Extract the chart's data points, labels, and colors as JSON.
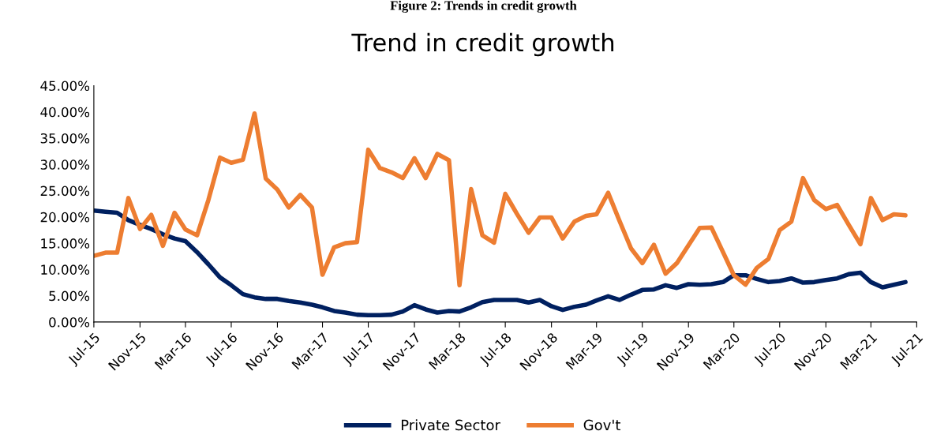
{
  "chart_data": {
    "type": "line",
    "title": "Trend in credit growth",
    "annotations": [
      "Figure 2: Trends in credit growth"
    ],
    "x": [
      "2015-07",
      "2015-08",
      "2015-09",
      "2015-10",
      "2015-11",
      "2015-12",
      "2016-01",
      "2016-02",
      "2016-03",
      "2016-04",
      "2016-05",
      "2016-06",
      "2016-07",
      "2016-08",
      "2016-09",
      "2016-10",
      "2016-11",
      "2016-12",
      "2017-01",
      "2017-02",
      "2017-03",
      "2017-04",
      "2017-05",
      "2017-06",
      "2017-07",
      "2017-08",
      "2017-09",
      "2017-10",
      "2017-11",
      "2017-12",
      "2018-01",
      "2018-02",
      "2018-03",
      "2018-04",
      "2018-05",
      "2018-06",
      "2018-07",
      "2018-08",
      "2018-09",
      "2018-10",
      "2018-11",
      "2018-12",
      "2019-01",
      "2019-02",
      "2019-03",
      "2019-04",
      "2019-05",
      "2019-06",
      "2019-07",
      "2019-08",
      "2019-09",
      "2019-10",
      "2019-11",
      "2019-12",
      "2020-01",
      "2020-02",
      "2020-03",
      "2020-04",
      "2020-05",
      "2020-06",
      "2020-07",
      "2020-08",
      "2020-09",
      "2020-10",
      "2020-11",
      "2020-12",
      "2021-01",
      "2021-02",
      "2021-03",
      "2021-04",
      "2021-05",
      "2021-06"
    ],
    "series": [
      {
        "name": "Private Sector",
        "color": "#002060",
        "values": [
          21.2,
          21.0,
          20.8,
          19.4,
          18.5,
          17.7,
          16.7,
          15.9,
          15.4,
          13.3,
          11.0,
          8.5,
          7.0,
          5.3,
          4.7,
          4.4,
          4.4,
          4.0,
          3.7,
          3.3,
          2.8,
          2.1,
          1.8,
          1.4,
          1.3,
          1.3,
          1.4,
          2.0,
          3.2,
          2.4,
          1.8,
          2.1,
          2.0,
          2.8,
          3.8,
          4.2,
          4.2,
          4.2,
          3.7,
          4.2,
          3.0,
          2.3,
          2.9,
          3.3,
          4.1,
          4.9,
          4.2,
          5.2,
          6.1,
          6.2,
          7.0,
          6.5,
          7.2,
          7.1,
          7.2,
          7.6,
          8.9,
          8.9,
          8.2,
          7.6,
          7.8,
          8.3,
          7.5,
          7.6,
          8.0,
          8.3,
          9.1,
          9.4,
          7.6,
          6.6,
          7.1,
          7.6
        ]
      },
      {
        "name": "Gov't",
        "color": "#ed7d31",
        "values": [
          12.6,
          13.2,
          13.2,
          23.6,
          17.7,
          20.4,
          14.5,
          20.8,
          17.6,
          16.5,
          23.2,
          31.3,
          30.3,
          30.9,
          39.7,
          27.3,
          25.2,
          21.8,
          24.2,
          21.8,
          9.0,
          14.2,
          15.0,
          15.2,
          32.8,
          29.3,
          28.5,
          27.4,
          31.2,
          27.4,
          32.0,
          30.8,
          7.0,
          25.3,
          16.5,
          15.1,
          24.4,
          20.6,
          17.0,
          19.9,
          19.9,
          15.9,
          19.1,
          20.2,
          20.5,
          24.6,
          19.3,
          14.0,
          11.2,
          14.7,
          9.2,
          11.2,
          14.6,
          17.9,
          18.0,
          13.3,
          8.9,
          7.1,
          10.3,
          12.0,
          17.5,
          19.1,
          27.4,
          23.2,
          21.5,
          22.3,
          18.5,
          14.8,
          23.6,
          19.4,
          20.5,
          20.3
        ]
      }
    ],
    "xlim": [
      "2015-07",
      "2021-07"
    ],
    "xticks": [
      {
        "value": "2015-07",
        "label": "Jul-15"
      },
      {
        "value": "2015-11",
        "label": "Nov-15"
      },
      {
        "value": "2016-03",
        "label": "Mar-16"
      },
      {
        "value": "2016-07",
        "label": "Jul-16"
      },
      {
        "value": "2016-11",
        "label": "Nov-16"
      },
      {
        "value": "2017-03",
        "label": "Mar-17"
      },
      {
        "value": "2017-07",
        "label": "Jul-17"
      },
      {
        "value": "2017-11",
        "label": "Nov-17"
      },
      {
        "value": "2018-03",
        "label": "Mar-18"
      },
      {
        "value": "2018-07",
        "label": "Jul-18"
      },
      {
        "value": "2018-11",
        "label": "Nov-18"
      },
      {
        "value": "2019-03",
        "label": "Mar-19"
      },
      {
        "value": "2019-07",
        "label": "Jul-19"
      },
      {
        "value": "2019-11",
        "label": "Nov-19"
      },
      {
        "value": "2020-03",
        "label": "Mar-20"
      },
      {
        "value": "2020-07",
        "label": "Jul-20"
      },
      {
        "value": "2020-11",
        "label": "Nov-20"
      },
      {
        "value": "2021-03",
        "label": "Mar-21"
      },
      {
        "value": "2021-07",
        "label": "Jul-21"
      }
    ],
    "ylim": [
      0,
      45
    ],
    "yticks": [
      {
        "value": 0,
        "label": "0.00%"
      },
      {
        "value": 5,
        "label": "5.00%"
      },
      {
        "value": 10,
        "label": "10.00%"
      },
      {
        "value": 15,
        "label": "15.00%"
      },
      {
        "value": 20,
        "label": "20.00%"
      },
      {
        "value": 25,
        "label": "25.00%"
      },
      {
        "value": 30,
        "label": "30.00%"
      },
      {
        "value": 35,
        "label": "35.00%"
      },
      {
        "value": 40,
        "label": "40.00%"
      },
      {
        "value": 45,
        "label": "45.00%"
      }
    ],
    "grid": false,
    "legend": "bottom",
    "marker": "none",
    "line_style": "solid"
  }
}
